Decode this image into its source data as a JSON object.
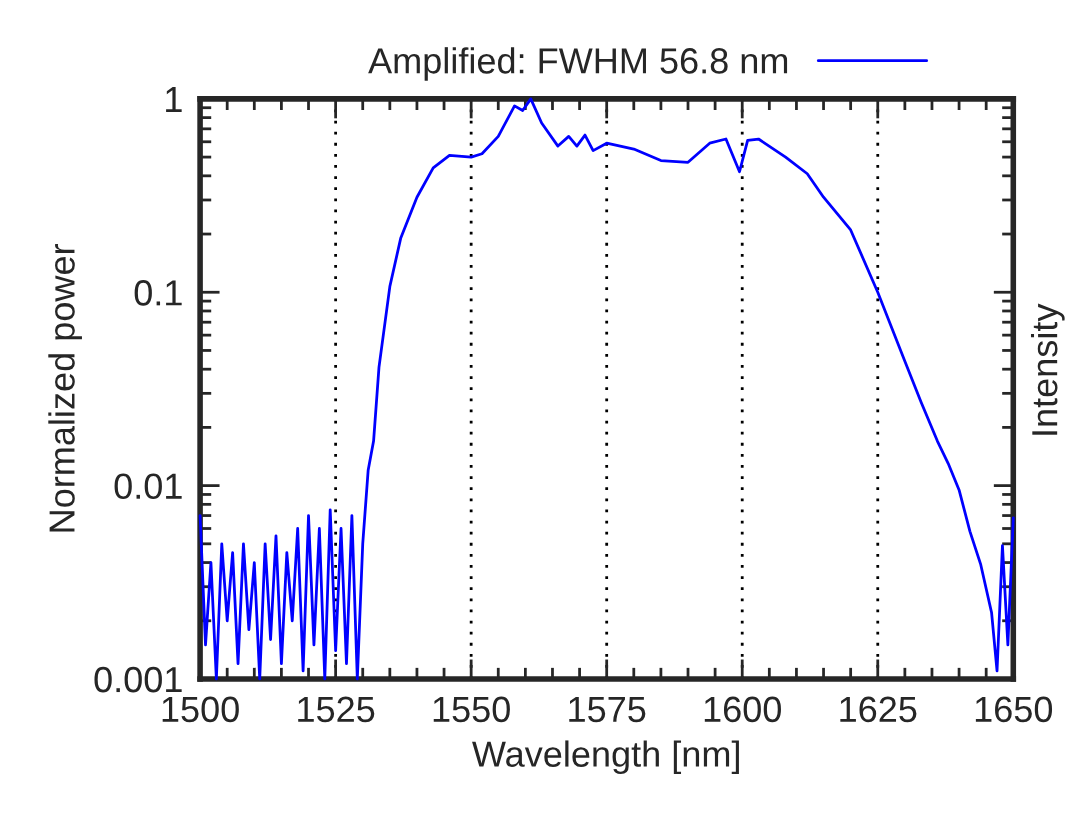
{
  "chart_data": {
    "type": "line",
    "xlabel": "Wavelength [nm]",
    "ylabel": "Normalized power",
    "annotations": [
      "Intensity"
    ],
    "log": "y",
    "xlim": [
      1500,
      1650
    ],
    "xticks": [
      1500,
      1525,
      1550,
      1575,
      1600,
      1625,
      1650
    ],
    "ylim": [
      0.001,
      1
    ],
    "yticks": [
      0.001,
      0.01,
      0.1,
      1
    ],
    "grid": "x",
    "legend": "top",
    "line_style": "solid",
    "marker": "none",
    "series": [
      {
        "name": "Amplified: FWHM 56.8 nm",
        "color": "#0000ff",
        "x": [
          1500,
          1501,
          1502,
          1503,
          1504,
          1505,
          1506,
          1507,
          1508,
          1509,
          1510,
          1511,
          1512,
          1513,
          1514,
          1515,
          1516,
          1517,
          1518,
          1519,
          1520,
          1521,
          1522,
          1523,
          1524,
          1525,
          1526,
          1527,
          1528,
          1529,
          1530,
          1531,
          1532,
          1533,
          1535,
          1537,
          1540,
          1543,
          1546,
          1550,
          1552,
          1555,
          1558,
          1559.5,
          1561,
          1563,
          1566,
          1568,
          1569.5,
          1571,
          1572.5,
          1575,
          1580,
          1585,
          1590,
          1594,
          1597,
          1599.5,
          1601,
          1603,
          1608,
          1612,
          1615,
          1620,
          1625,
          1630,
          1633,
          1636,
          1638,
          1640,
          1642,
          1644,
          1646,
          1647,
          1648,
          1649,
          1650
        ],
        "values": [
          0.007,
          0.0015,
          0.004,
          0.001,
          0.005,
          0.002,
          0.0045,
          0.0012,
          0.005,
          0.0018,
          0.004,
          0.001,
          0.005,
          0.0016,
          0.0055,
          0.0012,
          0.0045,
          0.002,
          0.006,
          0.0011,
          0.007,
          0.0015,
          0.006,
          0.001,
          0.0075,
          0.0014,
          0.006,
          0.0012,
          0.007,
          0.001,
          0.005,
          0.012,
          0.017,
          0.041,
          0.107,
          0.19,
          0.31,
          0.44,
          0.51,
          0.5,
          0.52,
          0.64,
          0.92,
          0.87,
          1.0,
          0.75,
          0.57,
          0.64,
          0.57,
          0.65,
          0.54,
          0.59,
          0.55,
          0.48,
          0.47,
          0.59,
          0.62,
          0.42,
          0.61,
          0.62,
          0.5,
          0.41,
          0.31,
          0.21,
          0.1,
          0.044,
          0.027,
          0.017,
          0.013,
          0.0095,
          0.0058,
          0.0039,
          0.0022,
          0.0011,
          0.0049,
          0.0015,
          0.0068
        ]
      }
    ]
  }
}
